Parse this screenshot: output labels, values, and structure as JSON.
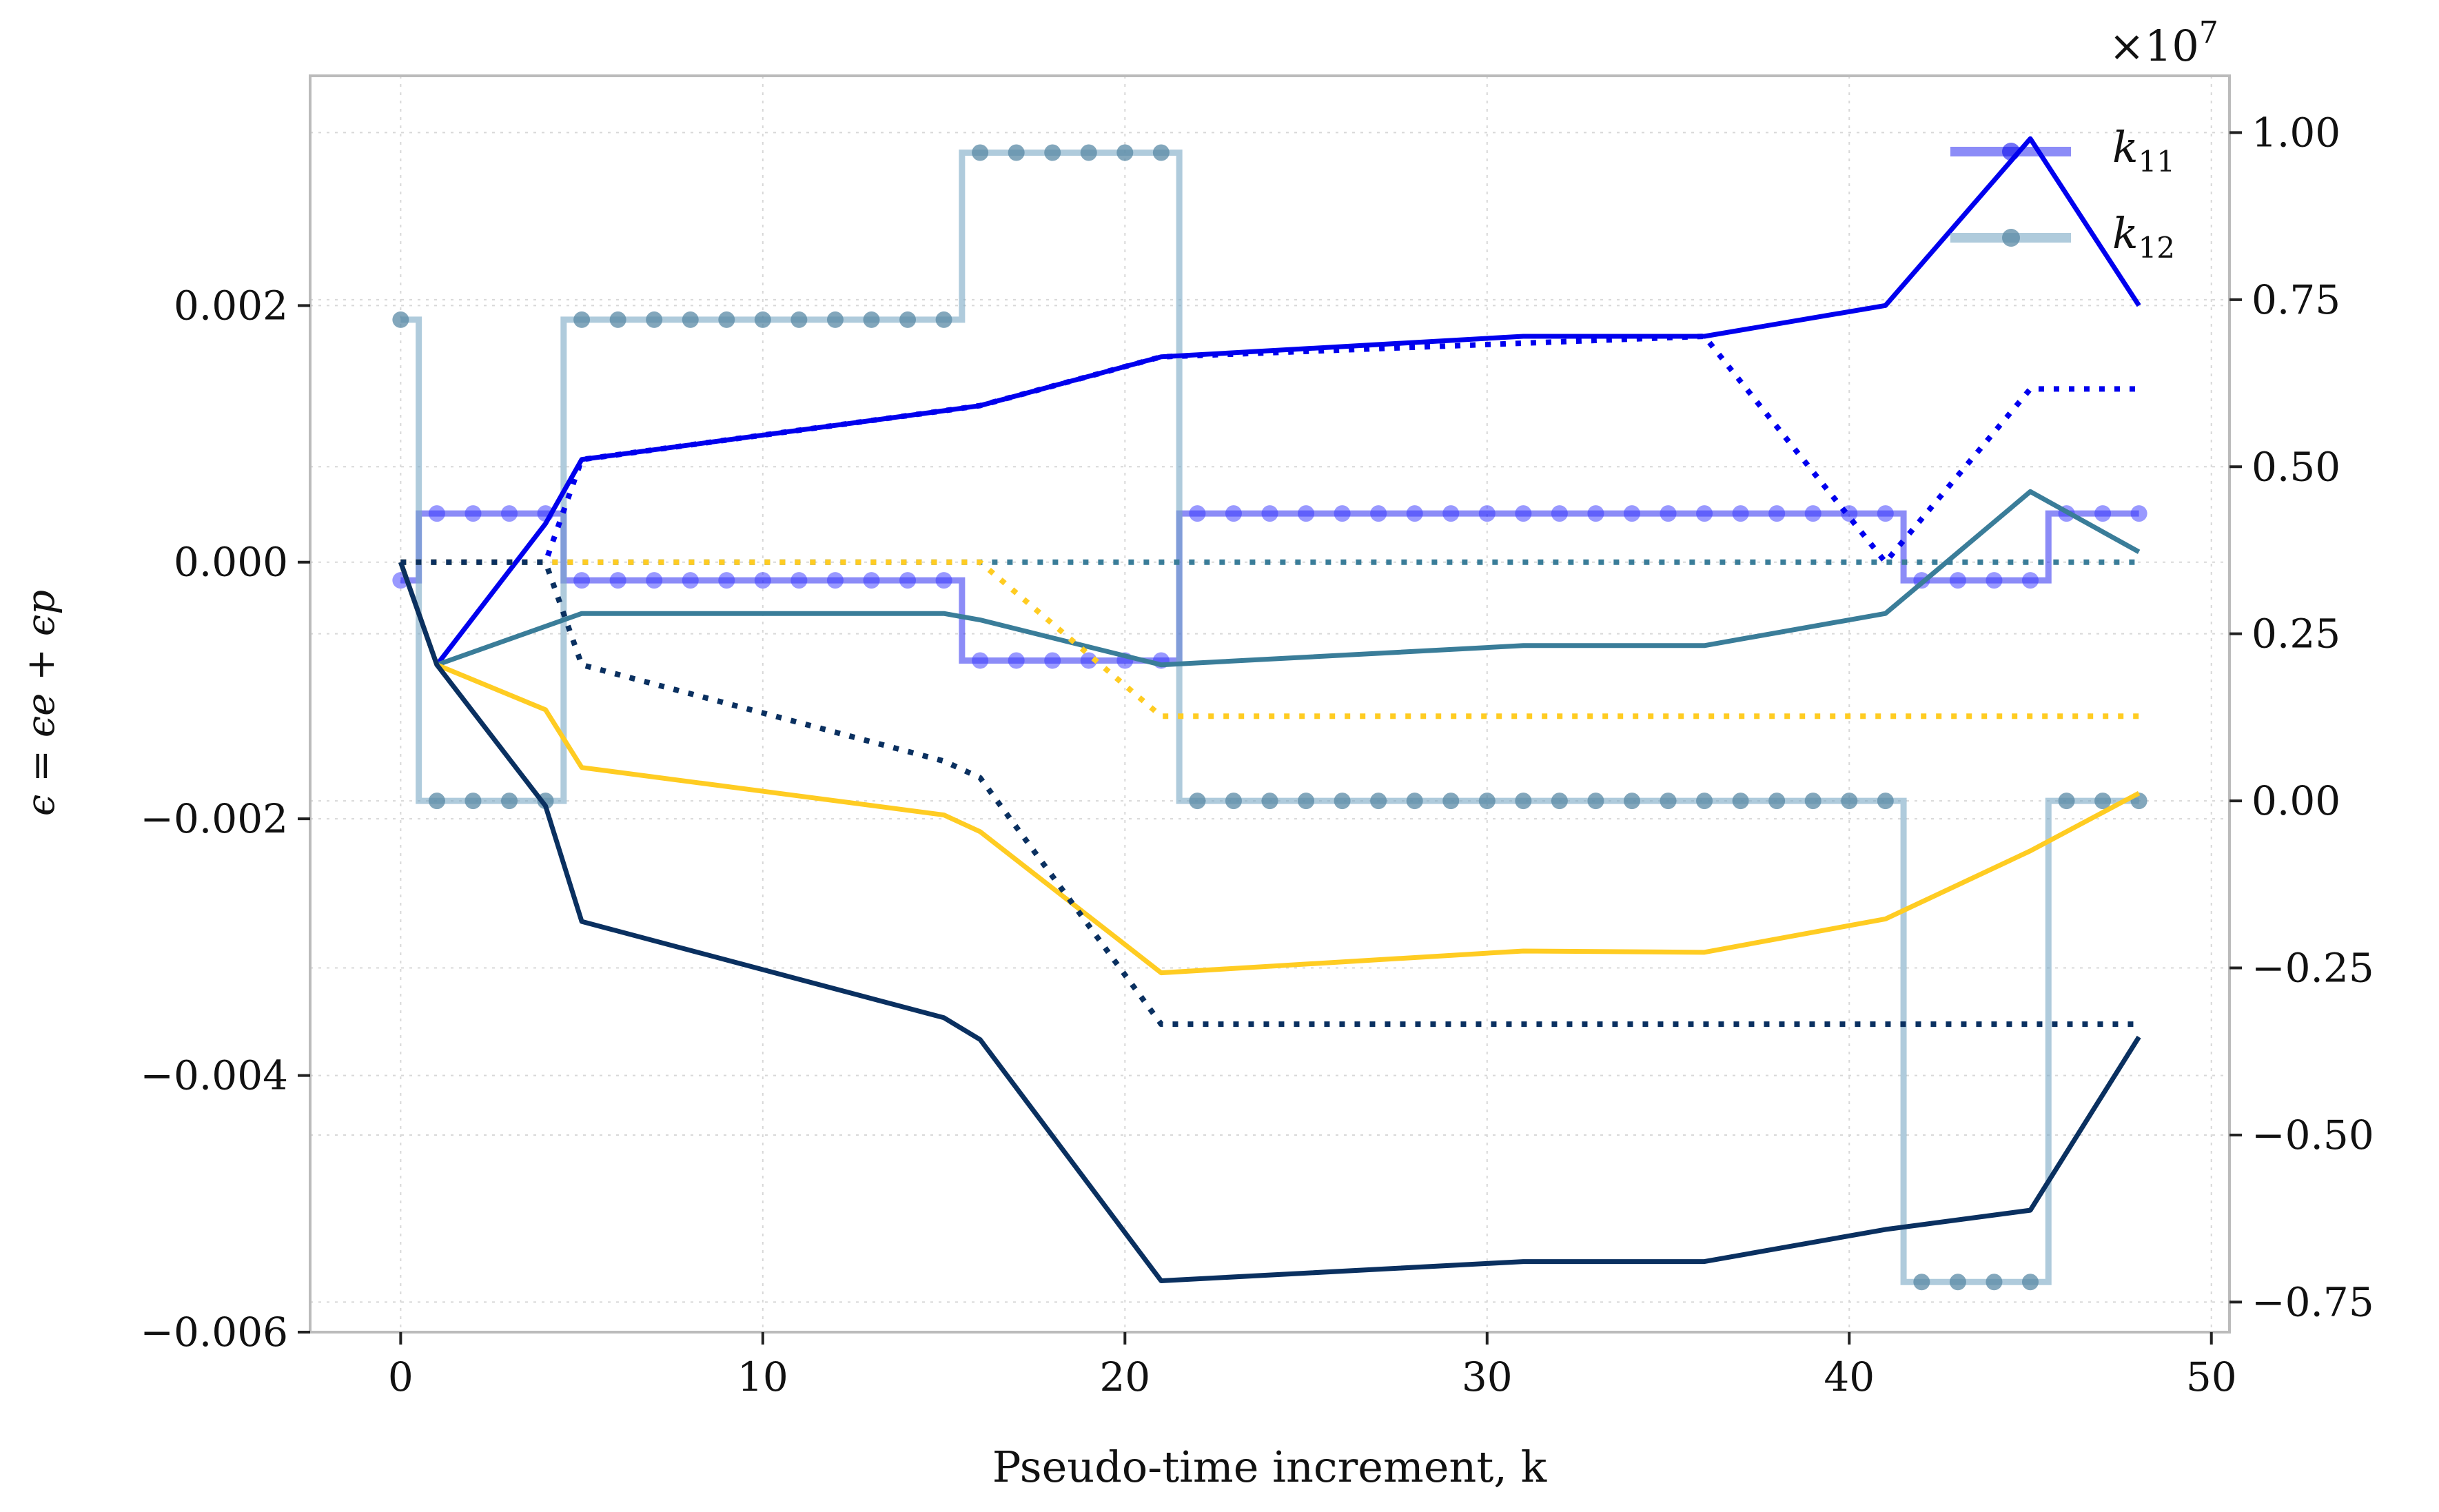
{
  "chart_data": {
    "type": "line",
    "xlabel": "Pseudo-time increment, k",
    "ylabel": "ϵ = ϵe + ϵp",
    "xlim": [
      -2.5,
      50.5
    ],
    "ylim_left": [
      -0.006,
      0.00379
    ],
    "ylim_right": [
      -0.795,
      1.085
    ],
    "right_axis_multiplier": "×10^7",
    "grid": true,
    "legend_position": "top-right",
    "xticks": [
      0,
      10,
      20,
      30,
      40,
      50
    ],
    "xtick_labels": [
      "0",
      "10",
      "20",
      "30",
      "40",
      "50"
    ],
    "yticks_left": [
      -0.006,
      -0.004,
      -0.002,
      0.0,
      0.002
    ],
    "ytick_labels_left": [
      "−0.006",
      "−0.004",
      "−0.002",
      "0.000",
      "0.002"
    ],
    "yticks_right": [
      -0.75,
      -0.5,
      -0.25,
      0.0,
      0.25,
      0.5,
      0.75,
      1.0
    ],
    "ytick_labels_right": [
      "−0.75",
      "−0.50",
      "−0.25",
      "0.00",
      "0.25",
      "0.50",
      "0.75",
      "1.00"
    ],
    "strain_series_left_axis": [
      {
        "color": "#0000ee",
        "style": "solid",
        "x": [
          0,
          1,
          4,
          5,
          15,
          16,
          21,
          31,
          36,
          41,
          45,
          48
        ],
        "y": [
          0.0,
          -0.0008,
          0.0003,
          0.0008,
          0.00118,
          0.00122,
          0.0016,
          0.00176,
          0.00176,
          0.002,
          0.0033,
          0.002
        ]
      },
      {
        "color": "#0000ee",
        "style": "dotted",
        "x": [
          0,
          4,
          5,
          15,
          16,
          21,
          36,
          41,
          45,
          48
        ],
        "y": [
          0.0,
          0.0,
          0.0008,
          0.00118,
          0.00122,
          0.0016,
          0.00176,
          0.0,
          0.00135,
          0.00135
        ]
      },
      {
        "color": "#3a7d99",
        "style": "solid",
        "x": [
          0,
          1,
          5,
          15,
          16,
          21,
          31,
          36,
          41,
          45,
          48
        ],
        "y": [
          0.0,
          -0.0008,
          -0.0004,
          -0.0004,
          -0.00045,
          -0.0008,
          -0.00065,
          -0.00065,
          -0.0004,
          0.00055,
          8e-05
        ]
      },
      {
        "color": "#3a7d99",
        "style": "dotted",
        "x": [
          0,
          48
        ],
        "y": [
          0.0,
          0.0
        ]
      },
      {
        "color": "#ffcc22",
        "style": "solid",
        "x": [
          0,
          1,
          4,
          5,
          15,
          16,
          21,
          31,
          36,
          41,
          45,
          48
        ],
        "y": [
          0.0,
          -0.0008,
          -0.00115,
          -0.0016,
          -0.00197,
          -0.0021,
          -0.0032,
          -0.00303,
          -0.00304,
          -0.00278,
          -0.00225,
          -0.0018
        ]
      },
      {
        "color": "#ffcc22",
        "style": "dotted",
        "x": [
          0,
          4,
          16,
          21,
          48
        ],
        "y": [
          0.0,
          0.0,
          0.0,
          -0.0012,
          -0.0012
        ]
      },
      {
        "color": "#0a3060",
        "style": "solid",
        "x": [
          0,
          1,
          4,
          5,
          15,
          16,
          21,
          31,
          36,
          41,
          45,
          48
        ],
        "y": [
          0.0,
          -0.0008,
          -0.0019,
          -0.0028,
          -0.00355,
          -0.00372,
          -0.0056,
          -0.00545,
          -0.00545,
          -0.0052,
          -0.00505,
          -0.0037
        ]
      },
      {
        "color": "#0a3060",
        "style": "dotted",
        "x": [
          0,
          4,
          5,
          15,
          16,
          21,
          48
        ],
        "y": [
          0.0,
          0.0,
          -0.0008,
          -0.00155,
          -0.00168,
          -0.0036,
          -0.0036
        ]
      }
    ],
    "stiffness_series_right_axis": [
      {
        "name": "k11",
        "color": "#0000ee",
        "x": [
          0,
          1,
          2,
          3,
          4,
          5,
          6,
          7,
          8,
          9,
          10,
          11,
          12,
          13,
          14,
          15,
          16,
          17,
          18,
          19,
          20,
          21,
          22,
          23,
          24,
          25,
          26,
          27,
          28,
          29,
          30,
          31,
          32,
          33,
          34,
          35,
          36,
          37,
          38,
          39,
          40,
          41,
          42,
          43,
          44,
          45,
          46,
          47,
          48
        ],
        "y": [
          0.33,
          0.43,
          0.43,
          0.43,
          0.43,
          0.33,
          0.33,
          0.33,
          0.33,
          0.33,
          0.33,
          0.33,
          0.33,
          0.33,
          0.33,
          0.33,
          0.21,
          0.21,
          0.21,
          0.21,
          0.21,
          0.21,
          0.43,
          0.43,
          0.43,
          0.43,
          0.43,
          0.43,
          0.43,
          0.43,
          0.43,
          0.43,
          0.43,
          0.43,
          0.43,
          0.43,
          0.43,
          0.43,
          0.43,
          0.43,
          0.43,
          0.43,
          0.33,
          0.33,
          0.33,
          0.33,
          0.43,
          0.43,
          0.43
        ]
      },
      {
        "name": "k12",
        "color": "#7aa8c4",
        "x": [
          0,
          1,
          2,
          3,
          4,
          5,
          6,
          7,
          8,
          9,
          10,
          11,
          12,
          13,
          14,
          15,
          16,
          17,
          18,
          19,
          20,
          21,
          22,
          23,
          24,
          25,
          26,
          27,
          28,
          29,
          30,
          31,
          32,
          33,
          34,
          35,
          36,
          37,
          38,
          39,
          40,
          41,
          42,
          43,
          44,
          45,
          46,
          47,
          48
        ],
        "y": [
          0.72,
          0.0,
          0.0,
          0.0,
          0.0,
          0.72,
          0.72,
          0.72,
          0.72,
          0.72,
          0.72,
          0.72,
          0.72,
          0.72,
          0.72,
          0.72,
          0.97,
          0.97,
          0.97,
          0.97,
          0.97,
          0.97,
          0.0,
          0.0,
          0.0,
          0.0,
          0.0,
          0.0,
          0.0,
          0.0,
          0.0,
          0.0,
          0.0,
          0.0,
          0.0,
          0.0,
          0.0,
          0.0,
          0.0,
          0.0,
          0.0,
          0.0,
          -0.72,
          -0.72,
          -0.72,
          -0.72,
          0.0,
          0.0,
          0.0
        ]
      }
    ],
    "legend": [
      {
        "label_base": "k",
        "label_sub": "11",
        "color": "#0000ee"
      },
      {
        "label_base": "k",
        "label_sub": "12",
        "color": "#7aa8c4"
      }
    ],
    "multiplier_base": "×10",
    "multiplier_exp": "7"
  }
}
